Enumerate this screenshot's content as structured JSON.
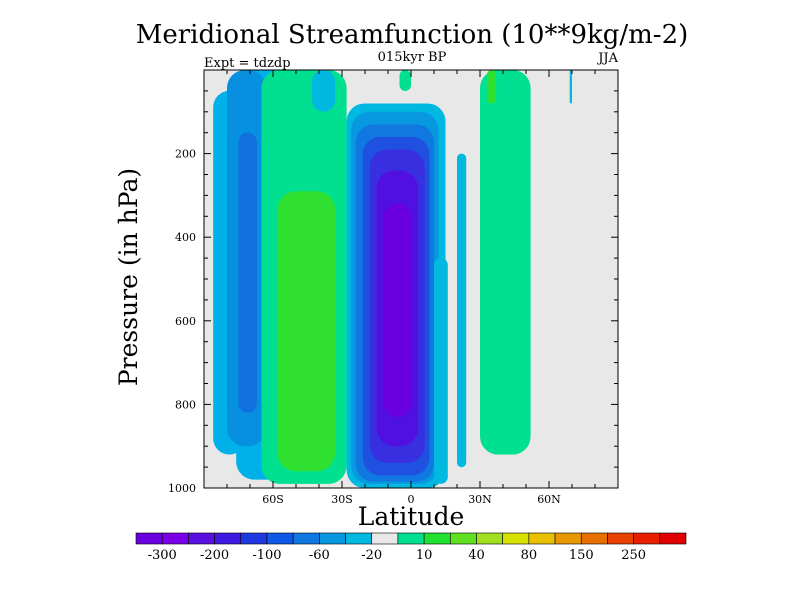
{
  "chart_data": {
    "type": "heatmap",
    "title": "Meridional Streamfunction (10**9kg/m-2)",
    "subtitle": "015kyr BP",
    "left_label": "Expt = tdzdp",
    "right_label": "JJA",
    "xlabel": "Latitude",
    "ylabel": "Pressure (in hPa)",
    "xlim": [
      -90,
      90
    ],
    "ylim": [
      1000,
      0
    ],
    "x_ticks": [
      {
        "value": -60,
        "label": "60S"
      },
      {
        "value": -30,
        "label": "30S"
      },
      {
        "value": 0,
        "label": "0"
      },
      {
        "value": 30,
        "label": "30N"
      },
      {
        "value": 60,
        "label": "60N"
      }
    ],
    "y_ticks": [
      {
        "value": 200,
        "label": "200"
      },
      {
        "value": 400,
        "label": "400"
      },
      {
        "value": 600,
        "label": "600"
      },
      {
        "value": 800,
        "label": "800"
      },
      {
        "value": 1000,
        "label": "1000"
      }
    ],
    "colorbar": {
      "colors": [
        "#6a00e0",
        "#7a00e8",
        "#5a10e0",
        "#3c18e0",
        "#2038e0",
        "#1058e8",
        "#1078e0",
        "#0898e0",
        "#00b8e0",
        "#e8e8e8",
        "#00e090",
        "#20e030",
        "#60e020",
        "#a0e020",
        "#d8e000",
        "#e8c000",
        "#e89800",
        "#e87000",
        "#e84000",
        "#e82000",
        "#e00000"
      ],
      "labels": [
        "-300",
        "-200",
        "-100",
        "-60",
        "-20",
        "10",
        "40",
        "80",
        "150",
        "250"
      ],
      "label_after_box": [
        1,
        3,
        5,
        7,
        9,
        11,
        13,
        15,
        17,
        19
      ]
    },
    "regions": [
      {
        "level": "-40",
        "color": "#00b0e8",
        "shape": "band",
        "lat_left": -86,
        "lat_right": -72,
        "p_top": 50,
        "p_bottom": 920
      },
      {
        "level": "-40",
        "color": "#00b0e8",
        "shape": "band",
        "lat_left": -76,
        "lat_right": -50,
        "p_top": 0,
        "p_bottom": 980
      },
      {
        "level": "-60",
        "color": "#0890e0",
        "shape": "band",
        "lat_left": -80,
        "lat_right": -63,
        "p_top": 0,
        "p_bottom": 900
      },
      {
        "level": "-100",
        "color": "#1070e0",
        "shape": "band",
        "lat_left": -75,
        "lat_right": -67,
        "p_top": 150,
        "p_bottom": 820
      },
      {
        "level": "20",
        "color": "#00e090",
        "shape": "band",
        "lat_left": -65,
        "lat_right": -28,
        "p_top": 0,
        "p_bottom": 990
      },
      {
        "level": "40",
        "color": "#30e030",
        "shape": "band",
        "lat_left": -58,
        "lat_right": -33,
        "p_top": 290,
        "p_bottom": 960
      },
      {
        "level": "-20",
        "color": "#00b8e0",
        "shape": "band",
        "lat_left": -28,
        "lat_right": 15,
        "p_top": 80,
        "p_bottom": 1000
      },
      {
        "level": "-60",
        "color": "#0898e0",
        "shape": "band",
        "lat_left": -26,
        "lat_right": 12,
        "p_top": 100,
        "p_bottom": 990
      },
      {
        "level": "-100",
        "color": "#1078e0",
        "shape": "band",
        "lat_left": -24,
        "lat_right": 10,
        "p_top": 130,
        "p_bottom": 985
      },
      {
        "level": "-150",
        "color": "#2050e0",
        "shape": "band",
        "lat_left": -21,
        "lat_right": 8,
        "p_top": 160,
        "p_bottom": 970
      },
      {
        "level": "-200",
        "color": "#3830e0",
        "shape": "band",
        "lat_left": -18,
        "lat_right": 6,
        "p_top": 190,
        "p_bottom": 940
      },
      {
        "level": "-250",
        "color": "#5010e0",
        "shape": "band",
        "lat_left": -15,
        "lat_right": 3,
        "p_top": 240,
        "p_bottom": 900
      },
      {
        "level": "-300",
        "color": "#6a00e0",
        "shape": "band",
        "lat_left": -12,
        "lat_right": 0,
        "p_top": 320,
        "p_bottom": 830
      },
      {
        "level": "-20",
        "color": "#00b8e0",
        "shape": "band",
        "lat_left": 10,
        "lat_right": 16,
        "p_top": 450,
        "p_bottom": 990
      },
      {
        "level": "-20",
        "color": "#00b8e0",
        "shape": "band",
        "lat_left": 20,
        "lat_right": 24,
        "p_top": 200,
        "p_bottom": 950
      },
      {
        "level": "10",
        "color": "#00e090",
        "shape": "band",
        "lat_left": 30,
        "lat_right": 52,
        "p_top": 0,
        "p_bottom": 920
      },
      {
        "level": "10",
        "color": "#00e090",
        "shape": "band",
        "lat_left": -5,
        "lat_right": 0,
        "p_top": 0,
        "p_bottom": 50
      },
      {
        "level": "20",
        "color": "#30e030",
        "shape": "band",
        "lat_left": 33,
        "lat_right": 37,
        "p_top": 0,
        "p_bottom": 80
      },
      {
        "level": "-20",
        "color": "#00b8e0",
        "shape": "band",
        "lat_left": -43,
        "lat_right": -33,
        "p_top": 0,
        "p_bottom": 100
      },
      {
        "level": "-20",
        "color": "#00b8e0",
        "shape": "band",
        "lat_left": 69,
        "lat_right": 70,
        "p_top": 0,
        "p_bottom": 80
      }
    ]
  }
}
